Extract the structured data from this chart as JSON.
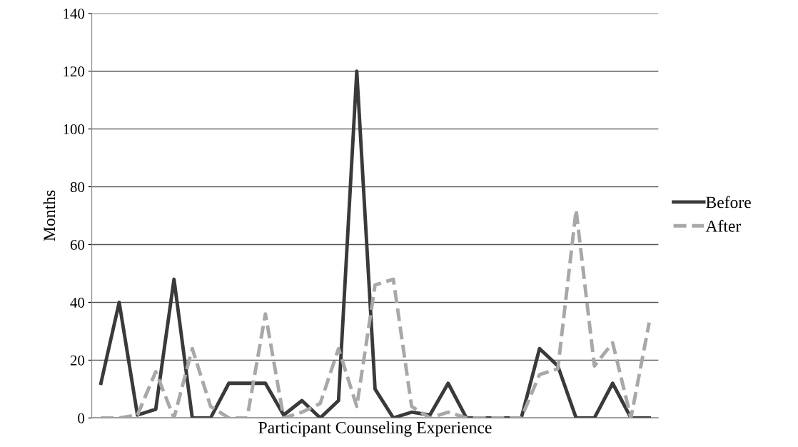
{
  "chart_data": {
    "type": "line",
    "xlabel": "Participant Counseling Experience",
    "ylabel": "Months",
    "categories": [
      null,
      null,
      null,
      null,
      null,
      null,
      null,
      null,
      null,
      null,
      null,
      null,
      null,
      null,
      null,
      null,
      null,
      null,
      null,
      null,
      null,
      null,
      null,
      null,
      null,
      null,
      null,
      null,
      null,
      null,
      null
    ],
    "series": [
      {
        "name": "Before",
        "color": "#3a3a3a",
        "line_style": "solid",
        "values": [
          12,
          40,
          1,
          3,
          48,
          0,
          0,
          12,
          12,
          12,
          1,
          6,
          0,
          6,
          120,
          10,
          0,
          2,
          1,
          12,
          0,
          0,
          0,
          0,
          24,
          18,
          0,
          0,
          12,
          0,
          0
        ]
      },
      {
        "name": "After",
        "color": "#a8a8a8",
        "line_style": "dashed",
        "values": [
          0,
          0,
          1,
          16,
          0,
          24,
          4,
          0,
          0,
          36,
          0,
          2,
          5,
          24,
          4,
          46,
          48,
          4,
          0,
          2,
          0,
          0,
          0,
          0,
          15,
          17,
          72,
          18,
          26,
          0,
          33
        ]
      }
    ],
    "ylim": [
      0,
      140
    ],
    "yticks": [
      0,
      20,
      40,
      60,
      80,
      100,
      120,
      140
    ],
    "grid": "y",
    "legend": "right"
  }
}
